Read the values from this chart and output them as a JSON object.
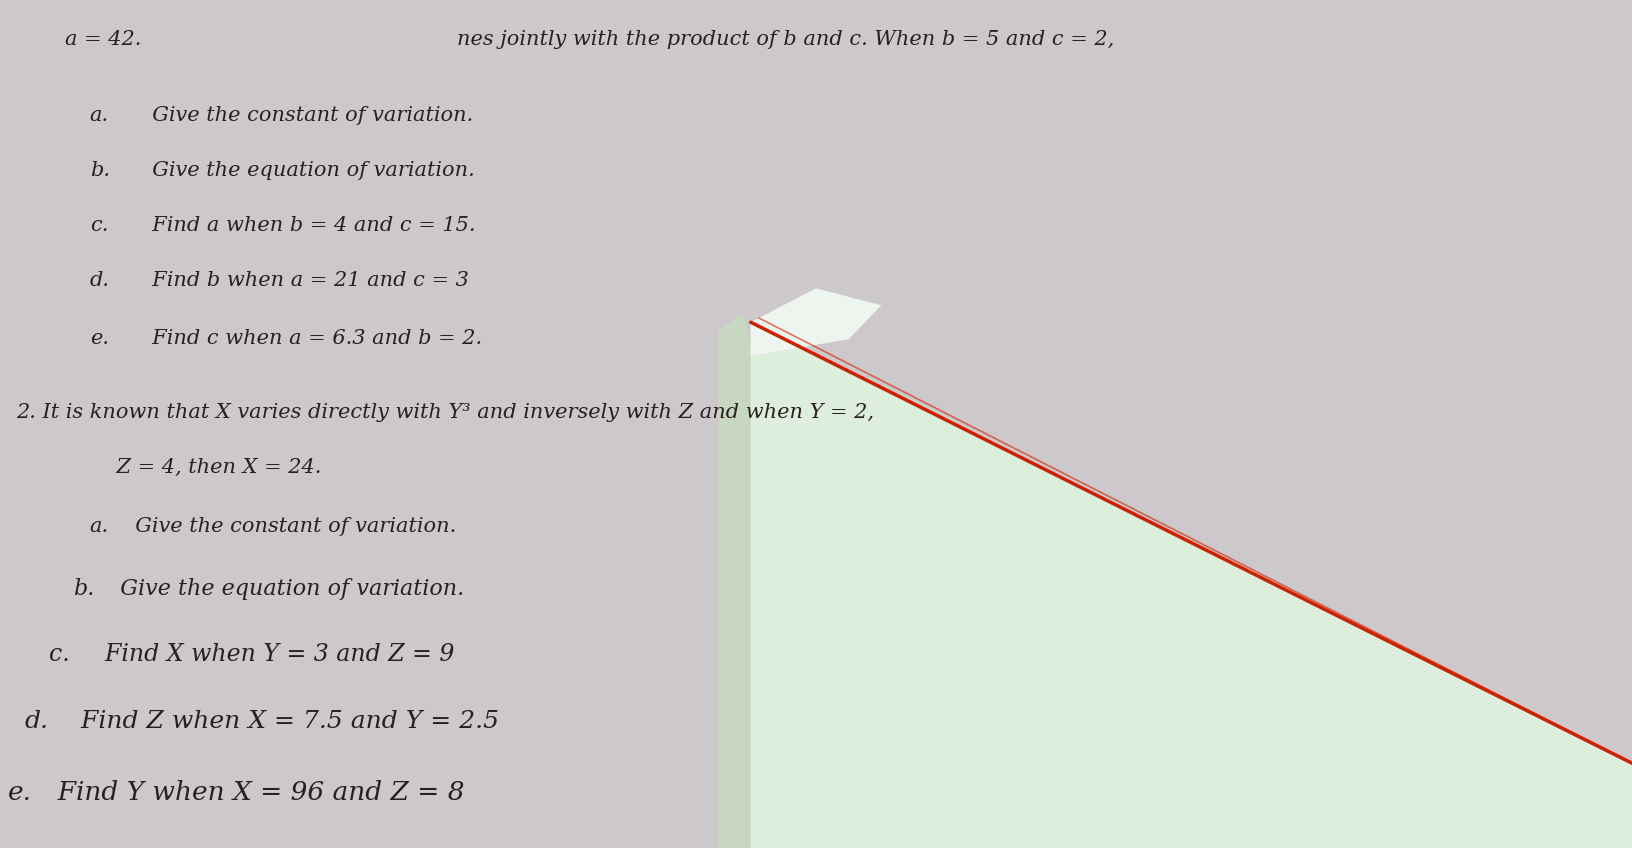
{
  "background_color": "#ccc8cc",
  "text_color": "#2a2020",
  "title_line": "a = 42.",
  "header_partial": "nes jointly with the product of b and c. When b = 5 and c = 2,",
  "section1_items": [
    {
      "label": "a.",
      "text": "   Give the constant of variation."
    },
    {
      "label": "b.",
      "text": "   Give the equation of variation."
    },
    {
      "label": "c.",
      "text": "   Find ",
      "italic_vars": "a",
      "rest": " when ",
      "b_val": "b",
      "eq1": " = 4 and ",
      "c_val": "c",
      "eq2": " = 15."
    },
    {
      "label": "d.",
      "text": "   Find ",
      "italic_vars": "b",
      "rest": " when ",
      "b_val": "a",
      "eq1": " = 21 and ",
      "c_val": "c",
      "eq2": " = 3"
    },
    {
      "label": "e.",
      "text": "   Find ",
      "italic_vars": "c",
      "rest": " when ",
      "b_val": "a",
      "eq1": " = 6.3 and ",
      "c_val": "b",
      "eq2": " = 2."
    }
  ],
  "section2_intro": "2. It is known that X varies directly with Y³ and inversely with Z and when Y = 2,",
  "section2_intro2": "    Z = 4, then X = 24.",
  "section2_items": [
    {
      "label": "a.",
      "indent": 0.055,
      "text": "   Give the constant of variation."
    },
    {
      "label": "b.",
      "indent": 0.045,
      "text": "   Give the equation of variation."
    },
    {
      "label": "c.",
      "indent": 0.035,
      "text": "   Find X when Y = 3 and Z = 9"
    },
    {
      "label": "d.",
      "indent": 0.025,
      "text": "   Find Z when X = 7.5 and Y = 2.5"
    },
    {
      "label": "e.",
      "indent": 0.01,
      "text": "   Find Y when X = 96 and Z = 8"
    }
  ],
  "paper_color": "#ddeedd",
  "paper_shadow_color": "#c8d8c0",
  "red_line_color": "#cc2200",
  "font_size_top": 15,
  "font_size_s1": 15,
  "font_size_s2a": 15,
  "font_size_s2b": 16,
  "font_size_s2c": 17,
  "font_size_s2d": 18,
  "font_size_s2e": 19
}
